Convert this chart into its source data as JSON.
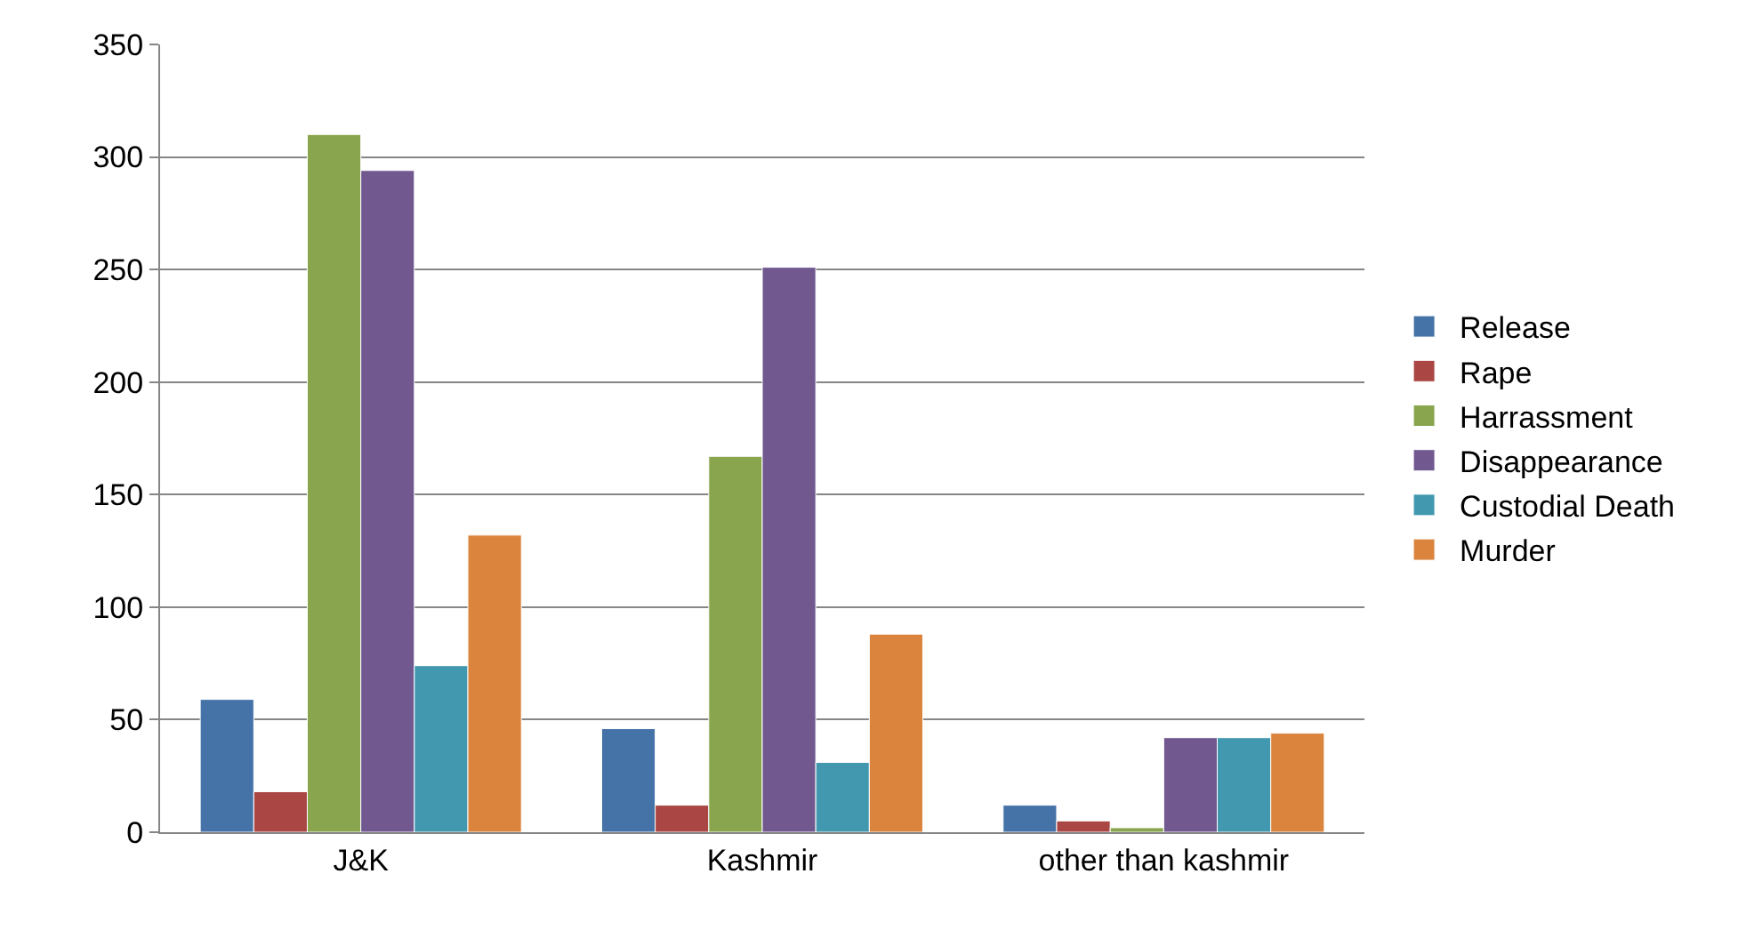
{
  "chart_data": {
    "type": "bar",
    "categories": [
      "J&K",
      "Kashmir",
      "other than kashmir"
    ],
    "series": [
      {
        "name": "Release",
        "color": "#4572a7",
        "values": [
          59,
          46,
          12
        ]
      },
      {
        "name": "Rape",
        "color": "#aa4643",
        "values": [
          18,
          12,
          5
        ]
      },
      {
        "name": "Harrassment",
        "color": "#89a54e",
        "values": [
          310,
          167,
          2
        ]
      },
      {
        "name": "Disappearance",
        "color": "#71588f",
        "values": [
          294,
          251,
          42
        ]
      },
      {
        "name": "Custodial Death",
        "color": "#4198af",
        "values": [
          74,
          31,
          42
        ]
      },
      {
        "name": "Murder",
        "color": "#db843d",
        "values": [
          132,
          88,
          44
        ]
      }
    ],
    "ylim": [
      0,
      350
    ],
    "yticks": [
      0,
      50,
      100,
      150,
      200,
      250,
      300,
      350
    ],
    "grid": "y",
    "legend": "right"
  }
}
